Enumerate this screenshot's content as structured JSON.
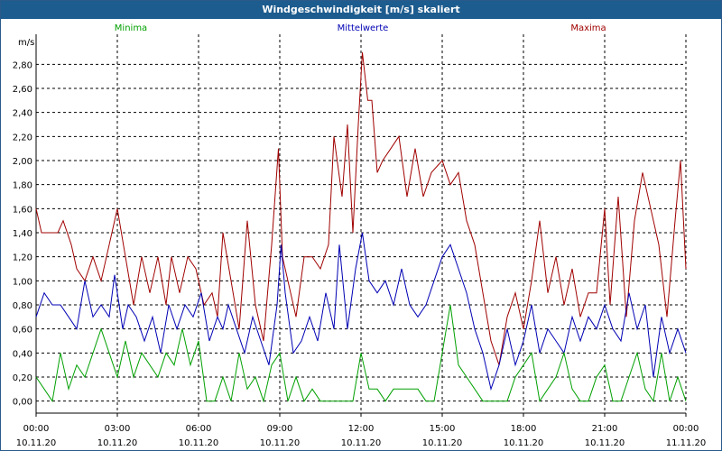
{
  "window": {
    "title": "Windgeschwindigkeit [m/s] skaliert"
  },
  "colors": {
    "title_bar": "#1d5c8e",
    "grid": "#000000",
    "minima": "#00a000",
    "mittel": "#0000b4",
    "maxima": "#a00000"
  },
  "chart_data": {
    "type": "line",
    "title": "Windgeschwindigkeit [m/s] skaliert",
    "ylabel": "m/s",
    "xlabel": "",
    "ylim": [
      -0.1,
      3.05
    ],
    "yticks": [
      0.0,
      0.2,
      0.4,
      0.6,
      0.8,
      1.0,
      1.2,
      1.4,
      1.6,
      1.8,
      2.0,
      2.2,
      2.4,
      2.6,
      2.8
    ],
    "ytick_labels": [
      "0,00",
      "0,20",
      "0,40",
      "0,60",
      "0,80",
      "1,00",
      "1,20",
      "1,40",
      "1,60",
      "1,80",
      "2,00",
      "2,20",
      "2,40",
      "2,60",
      "2,80"
    ],
    "xlim": [
      0,
      24
    ],
    "xticks": [
      0,
      3,
      6,
      9,
      12,
      15,
      18,
      21,
      24
    ],
    "xtick_labels": [
      {
        "time": "00:00",
        "date": "10.11.20"
      },
      {
        "time": "03:00",
        "date": "10.11.20"
      },
      {
        "time": "06:00",
        "date": "10.11.20"
      },
      {
        "time": "09:00",
        "date": "10.11.20"
      },
      {
        "time": "12:00",
        "date": "10.11.20"
      },
      {
        "time": "15:00",
        "date": "10.11.20"
      },
      {
        "time": "18:00",
        "date": "10.11.20"
      },
      {
        "time": "21:00",
        "date": "10.11.20"
      },
      {
        "time": "00:00",
        "date": "11.11.20"
      }
    ],
    "grid": true,
    "legend": {
      "placement": "top",
      "labels": [
        "Minima",
        "Mittelwerte",
        "Maxima"
      ]
    },
    "series": [
      {
        "name": "Maxima",
        "x": [
          0,
          0.2,
          0.4,
          0.8,
          1.0,
          1.3,
          1.5,
          1.8,
          2.1,
          2.4,
          2.7,
          3.0,
          3.3,
          3.6,
          3.9,
          4.2,
          4.5,
          4.8,
          5.0,
          5.3,
          5.6,
          5.9,
          6.2,
          6.5,
          6.7,
          6.9,
          7.2,
          7.5,
          7.8,
          8.1,
          8.4,
          8.7,
          8.95,
          9.1,
          9.3,
          9.6,
          9.9,
          10.2,
          10.5,
          10.8,
          11.0,
          11.3,
          11.5,
          11.7,
          11.9,
          12.05,
          12.25,
          12.4,
          12.6,
          12.8,
          13.1,
          13.4,
          13.7,
          14.0,
          14.3,
          14.6,
          15.0,
          15.3,
          15.6,
          15.9,
          16.2,
          16.5,
          16.8,
          17.1,
          17.4,
          17.7,
          18.0,
          18.3,
          18.6,
          18.9,
          19.2,
          19.5,
          19.8,
          20.1,
          20.4,
          20.7,
          21.0,
          21.2,
          21.5,
          21.8,
          22.1,
          22.4,
          22.7,
          23.0,
          23.3,
          23.6,
          23.8,
          24
        ],
        "values": [
          1.6,
          1.4,
          1.4,
          1.4,
          1.5,
          1.3,
          1.1,
          1.0,
          1.2,
          1.0,
          1.3,
          1.6,
          1.2,
          0.8,
          1.2,
          0.9,
          1.2,
          0.8,
          1.2,
          0.9,
          1.2,
          1.1,
          0.8,
          0.9,
          0.7,
          1.4,
          1.0,
          0.6,
          1.5,
          0.8,
          0.5,
          1.3,
          2.1,
          1.2,
          1.0,
          0.7,
          1.2,
          1.2,
          1.1,
          1.3,
          2.2,
          1.7,
          2.3,
          1.4,
          2.3,
          2.9,
          2.5,
          2.5,
          1.9,
          2.0,
          2.1,
          2.2,
          1.7,
          2.1,
          1.7,
          1.9,
          2.0,
          1.8,
          1.9,
          1.5,
          1.3,
          0.9,
          0.5,
          0.3,
          0.7,
          0.9,
          0.6,
          1.0,
          1.5,
          0.9,
          1.2,
          0.8,
          1.1,
          0.7,
          0.9,
          0.9,
          1.6,
          0.8,
          1.7,
          0.7,
          1.5,
          1.9,
          1.6,
          1.3,
          0.7,
          1.5,
          2.0,
          1.1
        ]
      },
      {
        "name": "Mittelwerte",
        "x": [
          0,
          0.3,
          0.6,
          0.9,
          1.2,
          1.5,
          1.8,
          2.1,
          2.4,
          2.7,
          2.9,
          3.2,
          3.4,
          3.7,
          4.0,
          4.3,
          4.6,
          4.9,
          5.2,
          5.5,
          5.8,
          6.1,
          6.4,
          6.7,
          6.9,
          7.1,
          7.4,
          7.7,
          8.0,
          8.3,
          8.6,
          8.9,
          9.05,
          9.2,
          9.5,
          9.8,
          10.1,
          10.4,
          10.7,
          11.0,
          11.2,
          11.5,
          11.8,
          12.05,
          12.3,
          12.6,
          12.9,
          13.2,
          13.5,
          13.8,
          14.1,
          14.4,
          14.7,
          15.0,
          15.3,
          15.6,
          15.9,
          16.2,
          16.5,
          16.8,
          17.1,
          17.4,
          17.7,
          18.0,
          18.3,
          18.6,
          18.9,
          19.2,
          19.5,
          19.8,
          20.1,
          20.4,
          20.7,
          21.0,
          21.3,
          21.6,
          21.9,
          22.2,
          22.5,
          22.8,
          23.1,
          23.4,
          23.7,
          24
        ],
        "values": [
          0.7,
          0.9,
          0.8,
          0.8,
          0.7,
          0.6,
          1.0,
          0.7,
          0.8,
          0.7,
          1.05,
          0.6,
          0.8,
          0.7,
          0.5,
          0.7,
          0.4,
          0.8,
          0.6,
          0.8,
          0.7,
          0.9,
          0.5,
          0.7,
          0.6,
          0.8,
          0.6,
          0.4,
          0.7,
          0.5,
          0.3,
          0.8,
          1.3,
          0.9,
          0.4,
          0.5,
          0.7,
          0.5,
          0.9,
          0.6,
          1.3,
          0.6,
          1.1,
          1.4,
          1.0,
          0.9,
          1.0,
          0.8,
          1.1,
          0.8,
          0.7,
          0.8,
          1.0,
          1.2,
          1.3,
          1.1,
          0.9,
          0.6,
          0.4,
          0.1,
          0.3,
          0.6,
          0.3,
          0.5,
          0.8,
          0.4,
          0.6,
          0.5,
          0.4,
          0.7,
          0.5,
          0.7,
          0.6,
          0.8,
          0.6,
          0.5,
          0.9,
          0.6,
          0.8,
          0.2,
          0.7,
          0.4,
          0.6,
          0.4
        ]
      },
      {
        "name": "Minima",
        "x": [
          0,
          0.3,
          0.6,
          0.9,
          1.2,
          1.5,
          1.8,
          2.1,
          2.4,
          2.7,
          3.0,
          3.3,
          3.6,
          3.9,
          4.2,
          4.5,
          4.8,
          5.1,
          5.4,
          5.7,
          6.0,
          6.3,
          6.6,
          6.9,
          7.2,
          7.5,
          7.8,
          8.1,
          8.4,
          8.7,
          9.0,
          9.3,
          9.6,
          9.9,
          10.2,
          10.5,
          10.8,
          11.1,
          11.4,
          11.7,
          12.0,
          12.3,
          12.6,
          12.9,
          13.2,
          13.5,
          13.8,
          14.1,
          14.4,
          14.7,
          15.0,
          15.3,
          15.6,
          15.9,
          16.2,
          16.5,
          16.8,
          17.1,
          17.4,
          17.7,
          18.0,
          18.3,
          18.6,
          18.9,
          19.2,
          19.5,
          19.8,
          20.1,
          20.4,
          20.7,
          21.0,
          21.3,
          21.6,
          21.9,
          22.2,
          22.5,
          22.8,
          23.1,
          23.4,
          23.7,
          24
        ],
        "values": [
          0.2,
          0.1,
          0.0,
          0.4,
          0.1,
          0.3,
          0.2,
          0.4,
          0.6,
          0.4,
          0.2,
          0.5,
          0.2,
          0.4,
          0.3,
          0.2,
          0.4,
          0.3,
          0.6,
          0.3,
          0.5,
          0.0,
          0.0,
          0.2,
          0.0,
          0.4,
          0.1,
          0.2,
          0.0,
          0.3,
          0.4,
          0.0,
          0.2,
          0.0,
          0.1,
          0.0,
          0.0,
          0.0,
          0.0,
          0.0,
          0.4,
          0.1,
          0.1,
          0.0,
          0.1,
          0.1,
          0.1,
          0.1,
          0.0,
          0.0,
          0.4,
          0.8,
          0.3,
          0.2,
          0.1,
          0.0,
          0.0,
          0.0,
          0.0,
          0.2,
          0.3,
          0.4,
          0.0,
          0.1,
          0.2,
          0.4,
          0.1,
          0.0,
          0.0,
          0.2,
          0.3,
          0.0,
          0.0,
          0.2,
          0.4,
          0.1,
          0.0,
          0.4,
          0.0,
          0.2,
          0.0
        ]
      }
    ]
  }
}
